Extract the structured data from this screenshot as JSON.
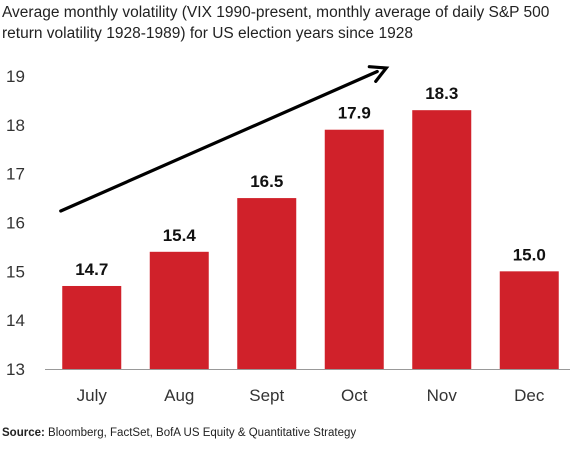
{
  "chart_data": {
    "type": "bar",
    "title": "Average monthly volatility (VIX 1990-present, monthly average of daily S&P 500 return volatility 1928-1989) for US election years since 1928",
    "categories": [
      "July",
      "Aug",
      "Sept",
      "Oct",
      "Nov",
      "Dec"
    ],
    "values": [
      14.7,
      15.4,
      16.5,
      17.9,
      18.3,
      15.0
    ],
    "value_labels": [
      "14.7",
      "15.4",
      "16.5",
      "17.9",
      "18.3",
      "15.0"
    ],
    "ylim": [
      13,
      19
    ],
    "yticks": [
      "13",
      "14",
      "15",
      "16",
      "17",
      "18",
      "19"
    ],
    "xlabel": "",
    "ylabel": "",
    "grid": false,
    "bar_color": "#d0212a",
    "annotation": "upward trend arrow"
  },
  "source": {
    "label": "Source:",
    "text": " Bloomberg, FactSet, BofA US Equity & Quantitative Strategy"
  }
}
